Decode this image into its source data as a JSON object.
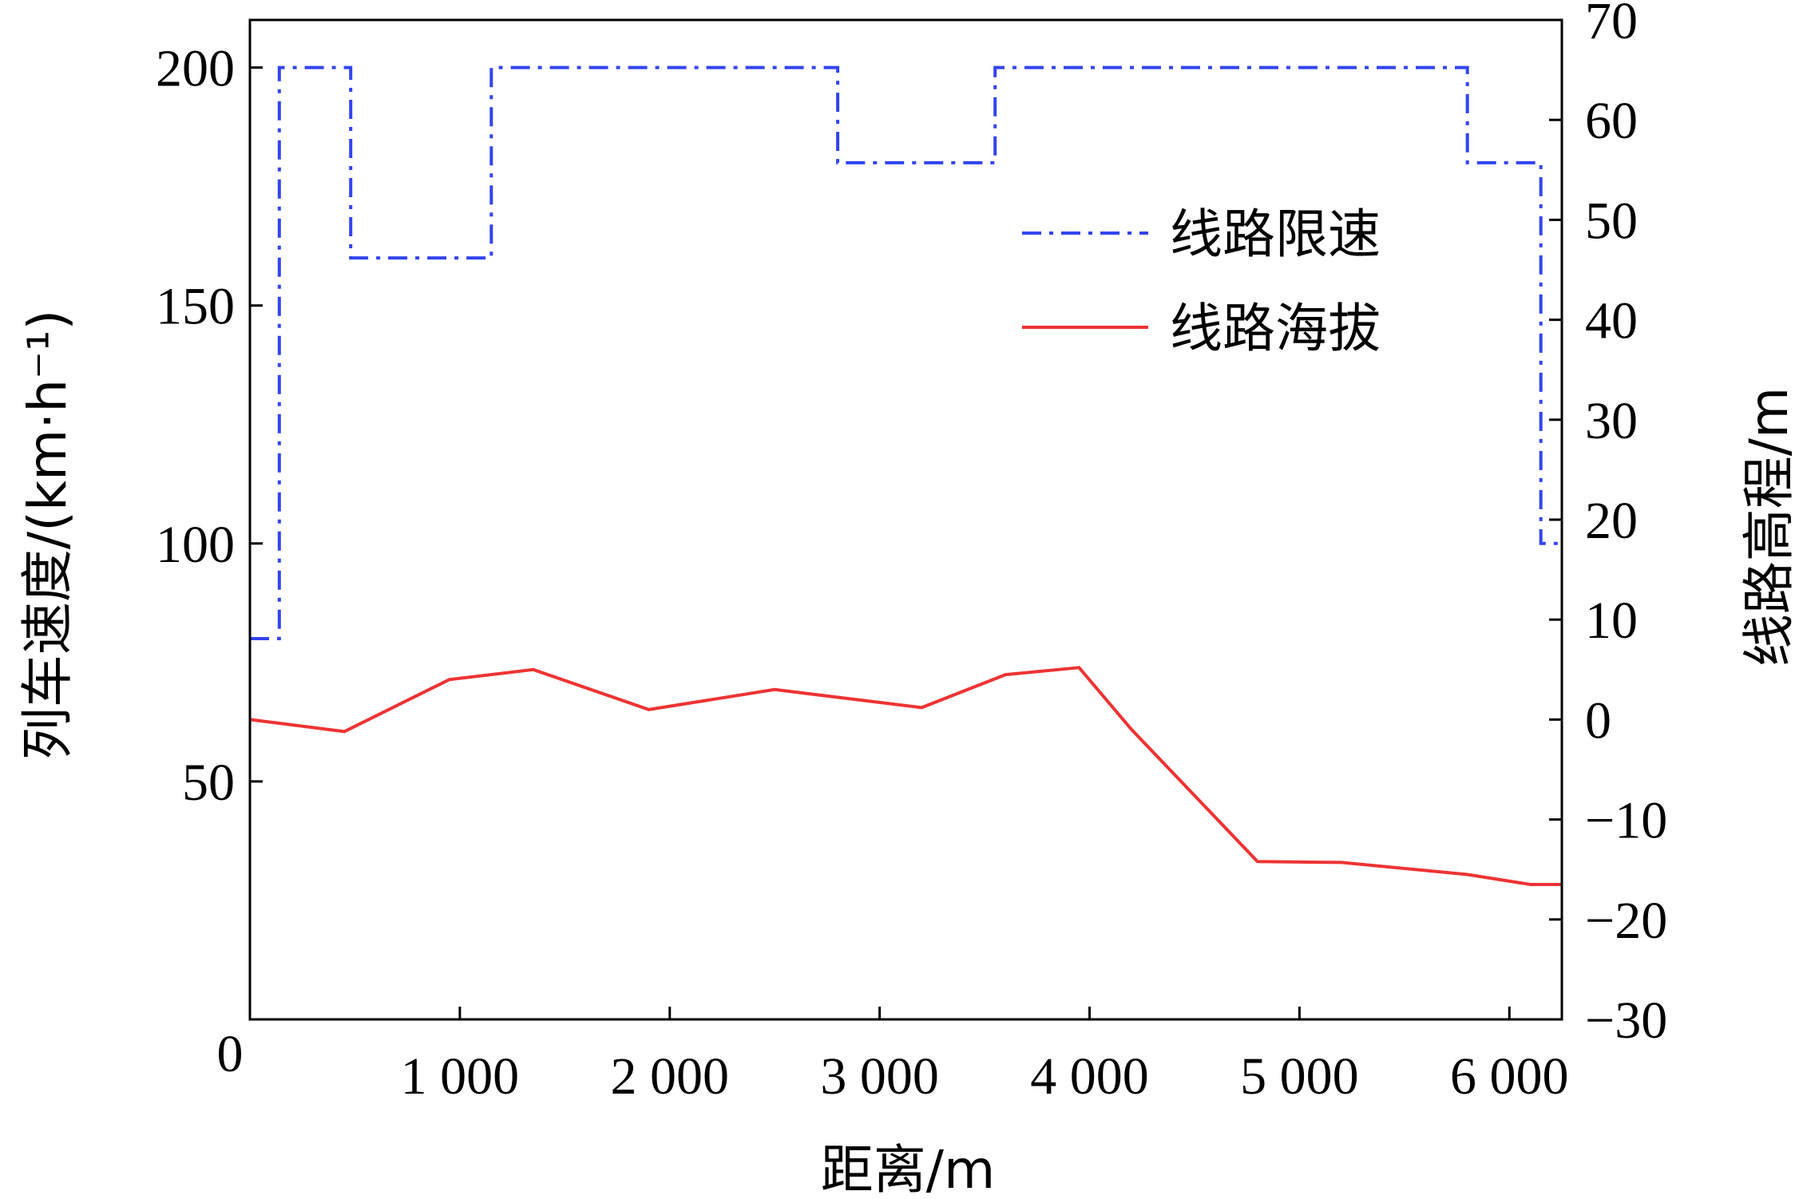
{
  "chart_data": {
    "type": "line",
    "xlabel": "距离/m",
    "ylabel_left": "列车速度/(km·h⁻¹)",
    "ylabel_right": "线路高程/m",
    "xlim": [
      0,
      6250
    ],
    "ylim_left": [
      0,
      210
    ],
    "ylim_right": [
      -30,
      70
    ],
    "x_ticks": [
      {
        "value": 0,
        "label": "0"
      },
      {
        "value": 1000,
        "label": "1 000"
      },
      {
        "value": 2000,
        "label": "2 000"
      },
      {
        "value": 3000,
        "label": "3 000"
      },
      {
        "value": 4000,
        "label": "4 000"
      },
      {
        "value": 5000,
        "label": "5 000"
      },
      {
        "value": 6000,
        "label": "6 000"
      }
    ],
    "y_left_ticks": [
      {
        "value": 50,
        "label": "50"
      },
      {
        "value": 100,
        "label": "100"
      },
      {
        "value": 150,
        "label": "150"
      },
      {
        "value": 200,
        "label": "200"
      }
    ],
    "y_right_ticks": [
      {
        "value": -30,
        "label": "−30"
      },
      {
        "value": -20,
        "label": "−20"
      },
      {
        "value": -10,
        "label": "−10"
      },
      {
        "value": 0,
        "label": "0"
      },
      {
        "value": 10,
        "label": "10"
      },
      {
        "value": 20,
        "label": "20"
      },
      {
        "value": 30,
        "label": "30"
      },
      {
        "value": 40,
        "label": "40"
      },
      {
        "value": 50,
        "label": "50"
      },
      {
        "value": 60,
        "label": "60"
      },
      {
        "value": 70,
        "label": "70"
      }
    ],
    "legend_position": "top-right",
    "series": [
      {
        "name": "线路限速",
        "axis": "left",
        "style": "dash-dot",
        "color": "#3344ee",
        "x": [
          0,
          140,
          140,
          480,
          480,
          1150,
          1150,
          2800,
          2800,
          3550,
          3550,
          5800,
          5800,
          6150,
          6150,
          6250
        ],
        "y": [
          80,
          80,
          200,
          200,
          160,
          160,
          200,
          200,
          180,
          180,
          200,
          200,
          180,
          180,
          100,
          100
        ]
      },
      {
        "name": "线路海拔",
        "axis": "right",
        "style": "solid",
        "color": "#ee3333",
        "x": [
          0,
          450,
          950,
          1350,
          1900,
          2500,
          3200,
          3600,
          3950,
          4200,
          4800,
          5200,
          5800,
          6100,
          6250
        ],
        "y": [
          0,
          -1.2,
          4,
          5,
          1,
          3,
          1.2,
          4.5,
          5.2,
          -1,
          -14.2,
          -14.3,
          -15.5,
          -16.5,
          -16.5
        ]
      }
    ]
  }
}
